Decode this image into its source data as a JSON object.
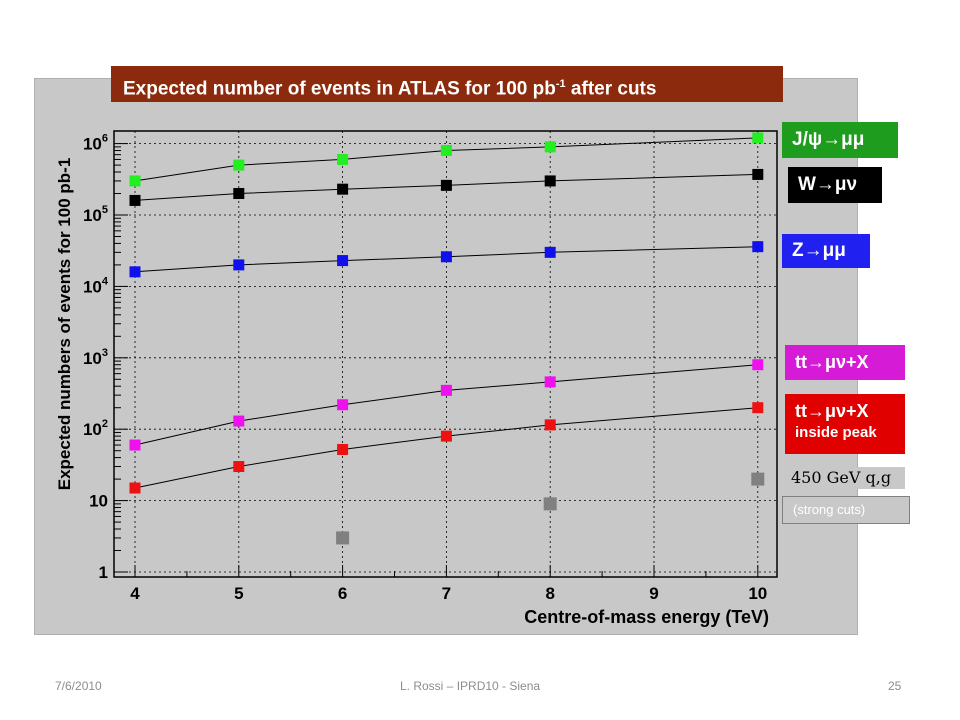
{
  "title": {
    "main": "Expected number of events in ATLAS for 100 pb",
    "sup": "-1",
    "tail": " after cuts"
  },
  "legend": {
    "jpsi": "J/ψ→μμ",
    "w": "W→μν",
    "z": "Z→μμ",
    "tt": "tt→μν+X",
    "tt_peak_l1": "tt→μν+X",
    "tt_peak_l2": "inside peak",
    "qg": "450 GeV q,g",
    "strong": "(strong cuts)"
  },
  "footer": {
    "date": "7/6/2010",
    "center": "L. Rossi  – IPRD10 - Siena",
    "page": "25"
  },
  "chart_data": {
    "type": "scatter",
    "title": "Expected number of events in ATLAS for 100 pb-1 after cuts",
    "xlabel": "Centre-of-mass energy (TeV)",
    "ylabel": "Expected numbers of events for 100 pb-1",
    "xlim": [
      4,
      10
    ],
    "ylim": [
      1,
      1600000
    ],
    "yscale": "log",
    "grid": true,
    "x_ticks": [
      "4",
      "5",
      "6",
      "7",
      "8",
      "9",
      "10"
    ],
    "y_ticks": [
      "1",
      "10",
      "10^2",
      "10^3",
      "10^4",
      "10^5",
      "10^6"
    ],
    "series": [
      {
        "name": "J/ψ→μμ",
        "color": "#22ee22",
        "fit": true,
        "x": [
          4,
          5,
          6,
          7,
          8,
          10
        ],
        "y": [
          300000,
          500000,
          600000,
          800000,
          900000,
          1200000
        ]
      },
      {
        "name": "W→μν",
        "color": "#000000",
        "fit": true,
        "x": [
          4,
          5,
          6,
          7,
          8,
          10
        ],
        "y": [
          160000,
          200000,
          230000,
          260000,
          300000,
          370000
        ]
      },
      {
        "name": "Z→μμ",
        "color": "#1010ee",
        "fit": true,
        "x": [
          4,
          5,
          6,
          7,
          8,
          10
        ],
        "y": [
          16000,
          20000,
          23000,
          26000,
          30000,
          36000
        ]
      },
      {
        "name": "tt→μν+X",
        "color": "#ee11ee",
        "fit": true,
        "x": [
          4,
          5,
          6,
          7,
          8,
          10
        ],
        "y": [
          60,
          130,
          220,
          350,
          460,
          800
        ]
      },
      {
        "name": "tt→μν+X inside peak",
        "color": "#ee1111",
        "fit": true,
        "x": [
          4,
          5,
          6,
          7,
          8,
          10
        ],
        "y": [
          15,
          30,
          52,
          80,
          115,
          200
        ]
      },
      {
        "name": "450 GeV q,g (strong cuts)",
        "color": "#808080",
        "fit": false,
        "x": [
          6,
          8,
          10
        ],
        "y": [
          3,
          9,
          20
        ]
      }
    ]
  }
}
